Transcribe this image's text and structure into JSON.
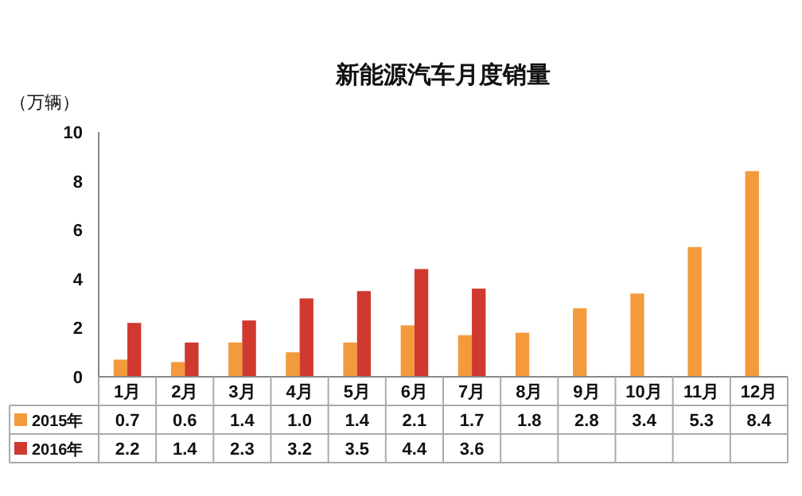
{
  "chart_data": {
    "type": "bar",
    "title": "新能源汽车月度销量",
    "ylabel": "（万辆）",
    "categories": [
      "1月",
      "2月",
      "3月",
      "4月",
      "5月",
      "6月",
      "7月",
      "8月",
      "9月",
      "10月",
      "11月",
      "12月"
    ],
    "series": [
      {
        "name": "2015年",
        "color": "#f39a3c",
        "values": [
          0.7,
          0.6,
          1.4,
          1.0,
          1.4,
          2.1,
          1.7,
          1.8,
          2.8,
          3.4,
          5.3,
          8.4
        ],
        "value_labels": [
          "0.7",
          "0.6",
          "1.4",
          "1.0",
          "1.4",
          "2.1",
          "1.7",
          "1.8",
          "2.8",
          "3.4",
          "5.3",
          "8.4"
        ]
      },
      {
        "name": "2016年",
        "color": "#d0392e",
        "values": [
          2.2,
          1.4,
          2.3,
          3.2,
          3.5,
          4.4,
          3.6,
          null,
          null,
          null,
          null,
          null
        ],
        "value_labels": [
          "2.2",
          "1.4",
          "2.3",
          "3.2",
          "3.5",
          "4.4",
          "3.6",
          null,
          null,
          null,
          null,
          null
        ]
      }
    ],
    "ylim": [
      0,
      10
    ],
    "yticks": [
      0,
      2,
      4,
      6,
      8,
      10
    ],
    "legend": "bottom left"
  }
}
